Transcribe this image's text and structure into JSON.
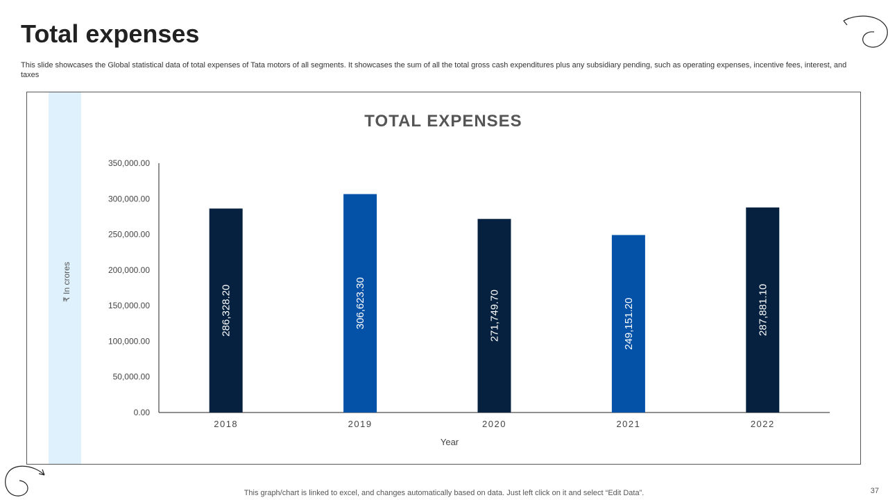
{
  "slide": {
    "title": "Total expenses",
    "description": "This slide showcases the Global statistical data of total expenses of Tata motors of all segments. It showcases the sum of all the total gross cash expenditures plus any subsidiary pending, such as operating expenses, incentive fees, interest, and taxes",
    "footer_note": "This graph/chart is linked to excel, and changes automatically based on data. Just left click on it and select “Edit Data”.",
    "page_number": "37"
  },
  "colors": {
    "dark_bar": "#06213f",
    "blue_bar": "#0452a8",
    "side_band": "#dff1fc"
  },
  "chart_data": {
    "type": "bar",
    "title": "TOTAL EXPENSES",
    "xlabel": "Year",
    "ylabel": "₹ In crores",
    "categories": [
      "2018",
      "2019",
      "2020",
      "2021",
      "2022"
    ],
    "values": [
      286328.2,
      306623.3,
      271749.7,
      249151.2,
      287881.1
    ],
    "value_labels": [
      "286,328.20",
      "306,623.30",
      "271,749.70",
      "249,151.20",
      "287,881.10"
    ],
    "bar_colors": [
      "#06213f",
      "#0452a8",
      "#06213f",
      "#0452a8",
      "#06213f"
    ],
    "ylim": [
      0,
      350000
    ],
    "yticks": [
      0,
      50000,
      100000,
      150000,
      200000,
      250000,
      300000,
      350000
    ],
    "ytick_labels": [
      "0.00",
      "50,000.00",
      "100,000.00",
      "150,000.00",
      "200,000.00",
      "250,000.00",
      "300,000.00",
      "350,000.00"
    ],
    "grid": false,
    "legend": "none"
  }
}
